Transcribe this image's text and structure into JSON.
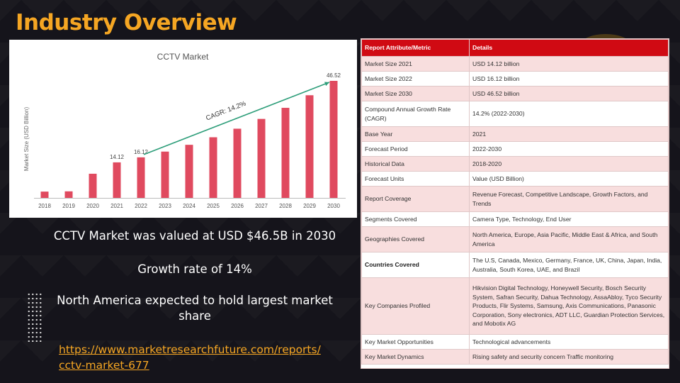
{
  "slide": {
    "title": "Industry Overview",
    "bullets": [
      "CCTV Market was valued at USD $46.5B in 2030",
      "Growth rate of 14%",
      "North America expected to hold largest market share"
    ],
    "link": "https://www.marketresearchfuture.com/reports/cctv-market-677",
    "colors": {
      "title": "#f5a623",
      "link": "#f5a623",
      "background": "#15141b",
      "bar": "#e04a5f",
      "arrow": "#2e9e7a",
      "table_header": "#d00a13",
      "table_row_alt": "#f8dede"
    }
  },
  "chart_data": {
    "type": "bar",
    "title": "CCTV Market",
    "ylabel": "Market Size  (USD Billion)",
    "categories": [
      "2018",
      "2019",
      "2020",
      "2021",
      "2022",
      "2023",
      "2024",
      "2025",
      "2026",
      "2027",
      "2028",
      "2029",
      "2030"
    ],
    "values": [
      2.5,
      2.6,
      9.6,
      14.12,
      16.12,
      18.4,
      21.1,
      24.1,
      27.5,
      31.4,
      35.8,
      40.8,
      46.52
    ],
    "data_labels": {
      "2021": "14.12",
      "2022": "16.12",
      "2030": "46.52"
    },
    "annotation": "CAGR: 14.2%",
    "ylim": [
      0,
      50
    ],
    "grid": false,
    "legend": "none"
  },
  "table": {
    "headers": [
      "Report Attribute/Metric",
      "Details"
    ],
    "rows": [
      {
        "metric": "Market Size 2021",
        "details": "USD 14.12 billion"
      },
      {
        "metric": "Market Size 2022",
        "details": "USD 16.12 billion"
      },
      {
        "metric": "Market Size 2030",
        "details": "USD 46.52 billion"
      },
      {
        "metric": "Compound Annual Growth Rate (CAGR)",
        "details": "14.2% (2022-2030)"
      },
      {
        "metric": "Base Year",
        "details": "2021"
      },
      {
        "metric": "Forecast Period",
        "details": "2022-2030"
      },
      {
        "metric": "Historical Data",
        "details": "2018-2020"
      },
      {
        "metric": "Forecast Units",
        "details": "Value (USD Billion)"
      },
      {
        "metric": "Report Coverage",
        "details": "Revenue Forecast, Competitive Landscape, Growth Factors, and Trends"
      },
      {
        "metric": "Segments Covered",
        "details": "Camera Type, Technology, End User"
      },
      {
        "metric": "Geographies Covered",
        "details": "North America, Europe, Asia Pacific, Middle East & Africa, and South America"
      },
      {
        "metric": "Countries Covered",
        "details": "The U.S, Canada, Mexico, Germany, France, UK, China, Japan, India, Australia, South Korea, UAE, and Brazil",
        "bold": true
      },
      {
        "metric": "Key Companies Profiled",
        "details": "Hikvision Digital Technology, Honeywell Security, Bosch Security System, Safran Security, Dahua Technology, AssaAbloy, Tyco Security Products, Flir Systems, Samsung, Axis Communications, Panasonic Corporation, Sony electronics, ADT LLC, Guardian Protection Services, and Mobotix AG"
      },
      {
        "metric": "Key Market Opportunities",
        "details": "Technological advancements"
      },
      {
        "metric": "Key Market Dynamics",
        "details": "Rising safety and security concern Traffic monitoring"
      }
    ]
  }
}
